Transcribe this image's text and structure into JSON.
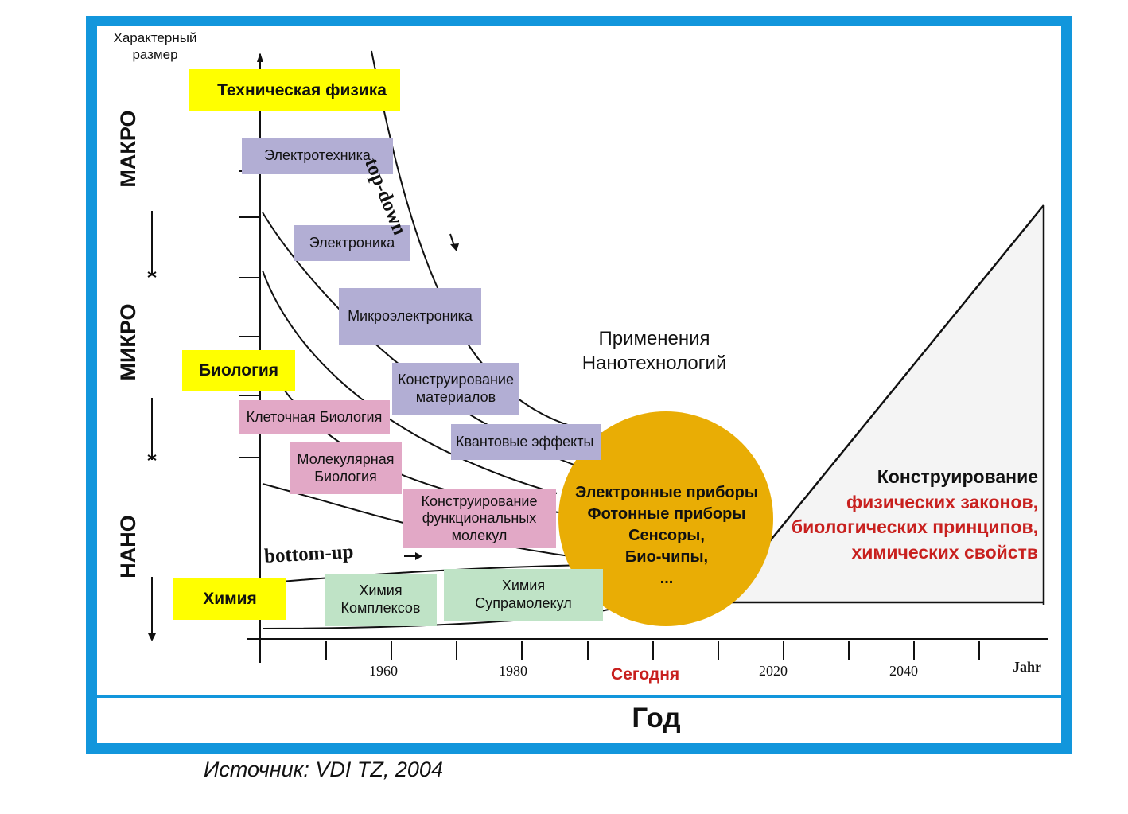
{
  "axis": {
    "y_title_line1": "Характерный",
    "y_title_line2": "размер",
    "x_title": "Год",
    "x_unit": "Jahr",
    "today": "Сегодня",
    "years": [
      "1960",
      "1980",
      "2020",
      "2040"
    ]
  },
  "scales": {
    "macro": "МАКРО",
    "micro": "МИКРО",
    "nano": "НАНО"
  },
  "arrows": {
    "top_down": "top-down",
    "bottom_up": "bottom-up"
  },
  "disciplines": {
    "tech_physics": "Техническая физика",
    "biology": "Биология",
    "chemistry": "Химия"
  },
  "fields": {
    "electrotechnics": "Электротехника",
    "electronics": "Электроника",
    "microelectronics": "Микроэлектроника",
    "materials_line1": "Конструирование",
    "materials_line2": "материалов",
    "quantum": "Квантовые эффекты",
    "cell_bio": "Клеточная Биология",
    "mol_bio_line1": "Молекулярная",
    "mol_bio_line2": "Биология",
    "func_mol_line1": "Конструирование",
    "func_mol_line2": "функциональных",
    "func_mol_line3": "молекул",
    "complex_chem_line1": "Химия",
    "complex_chem_line2": "Комплексов",
    "supra_chem_line1": "Химия",
    "supra_chem_line2": "Супрамолекул"
  },
  "applications": {
    "line1": "Применения",
    "line2": "Нанотехнологий"
  },
  "circle": {
    "line1": "Электронные приборы",
    "line2": "Фотонные приборы",
    "line3": "Сенсоры,",
    "line4": "Био-чипы,",
    "line5": "..."
  },
  "design": {
    "line1": "Конструирование",
    "line2": "физических законов,",
    "line3": "биологических принципов,",
    "line4": "химических свойств"
  },
  "source": "Источник: VDI TZ, 2004",
  "colors": {
    "frame": "#1296dc",
    "yellow": "#ffff00",
    "purple": "#b2aed4",
    "pink": "#e2a8c6",
    "green": "#bfe3c6",
    "circle": "#e9ad05",
    "red_text": "#c8201e"
  }
}
